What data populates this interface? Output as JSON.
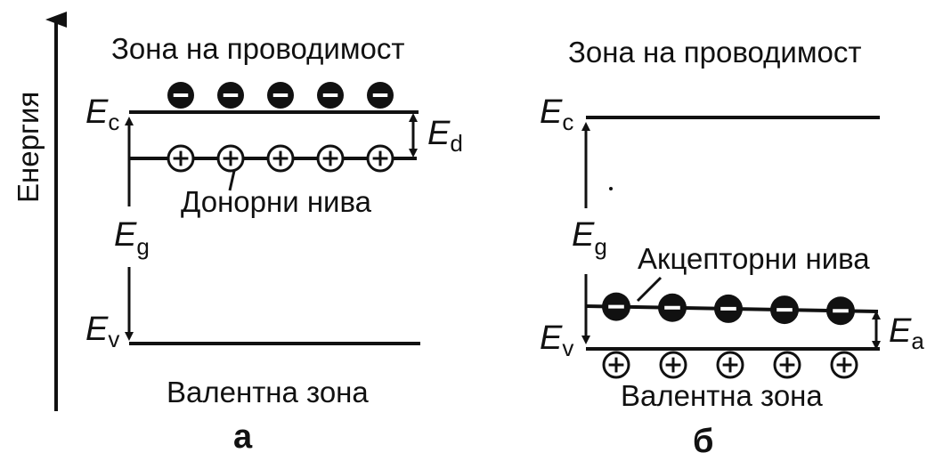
{
  "axis": {
    "label": "Енергия"
  },
  "panel_a": {
    "conduction_band": "Зона на проводимост",
    "donor_levels": "Донорни нива",
    "valence_band": "Валентна зона",
    "ec": {
      "main": "E",
      "sub": "c"
    },
    "ed": {
      "main": "E",
      "sub": "d"
    },
    "eg": {
      "main": "E",
      "sub": "g"
    },
    "ev": {
      "main": "E",
      "sub": "v"
    },
    "electron_count": 5,
    "hole_count": 5,
    "panel_label": "а"
  },
  "panel_b": {
    "conduction_band": "Зона на проводимост",
    "acceptor_levels": "Акцепторни нива",
    "valence_band": "Валентна зона",
    "ec": {
      "main": "E",
      "sub": "c"
    },
    "ea": {
      "main": "E",
      "sub": "a"
    },
    "eg": {
      "main": "E",
      "sub": "g"
    },
    "ev": {
      "main": "E",
      "sub": "v"
    },
    "electron_count": 5,
    "hole_count": 5,
    "panel_label": "б"
  }
}
